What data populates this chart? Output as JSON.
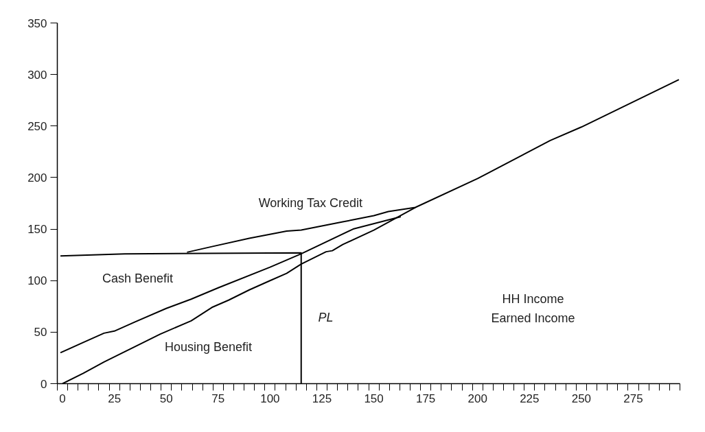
{
  "chart_data": {
    "type": "line",
    "series": [
      {
        "color": "#000000",
        "x": [
          60,
          72,
          90,
          108,
          115,
          125,
          135,
          140,
          150,
          157,
          170,
          200,
          235,
          250,
          297
        ],
        "values": [
          127.5,
          133,
          141,
          148,
          149,
          153,
          157,
          159,
          163,
          167,
          171,
          199,
          236,
          249,
          295
        ]
      },
      {
        "color": "#000000",
        "x": [
          -1,
          10,
          20,
          25,
          35,
          50,
          62,
          75,
          100,
          115,
          140,
          163
        ],
        "values": [
          30,
          40,
          49,
          51,
          60,
          73,
          82,
          93,
          113,
          126,
          150,
          162
        ]
      },
      {
        "color": "#000000",
        "x": [
          0,
          10,
          20,
          30,
          47,
          62,
          72,
          80,
          90,
          100,
          108,
          115,
          127,
          130,
          135,
          150,
          170
        ],
        "values": [
          0,
          10,
          21,
          31,
          48,
          61,
          74,
          81,
          91,
          100,
          107,
          116,
          128,
          129,
          135,
          149,
          171
        ]
      },
      {
        "color": "#000000",
        "x": [
          -1,
          30,
          115,
          115
        ],
        "values": [
          124,
          126,
          127,
          0
        ]
      }
    ],
    "xlim": [
      -2.5,
      297.5
    ],
    "ylim": [
      0,
      350
    ],
    "xticks": [
      0,
      25,
      50,
      75,
      100,
      125,
      150,
      175,
      200,
      225,
      250,
      275
    ],
    "yticks": [
      0,
      50,
      100,
      150,
      200,
      250,
      300,
      350
    ],
    "annotations": [
      "Working Tax Credit",
      "Cash Benefit",
      "Housing Benefit",
      "PL",
      "HH Income",
      "Earned Income"
    ],
    "grid": false
  }
}
